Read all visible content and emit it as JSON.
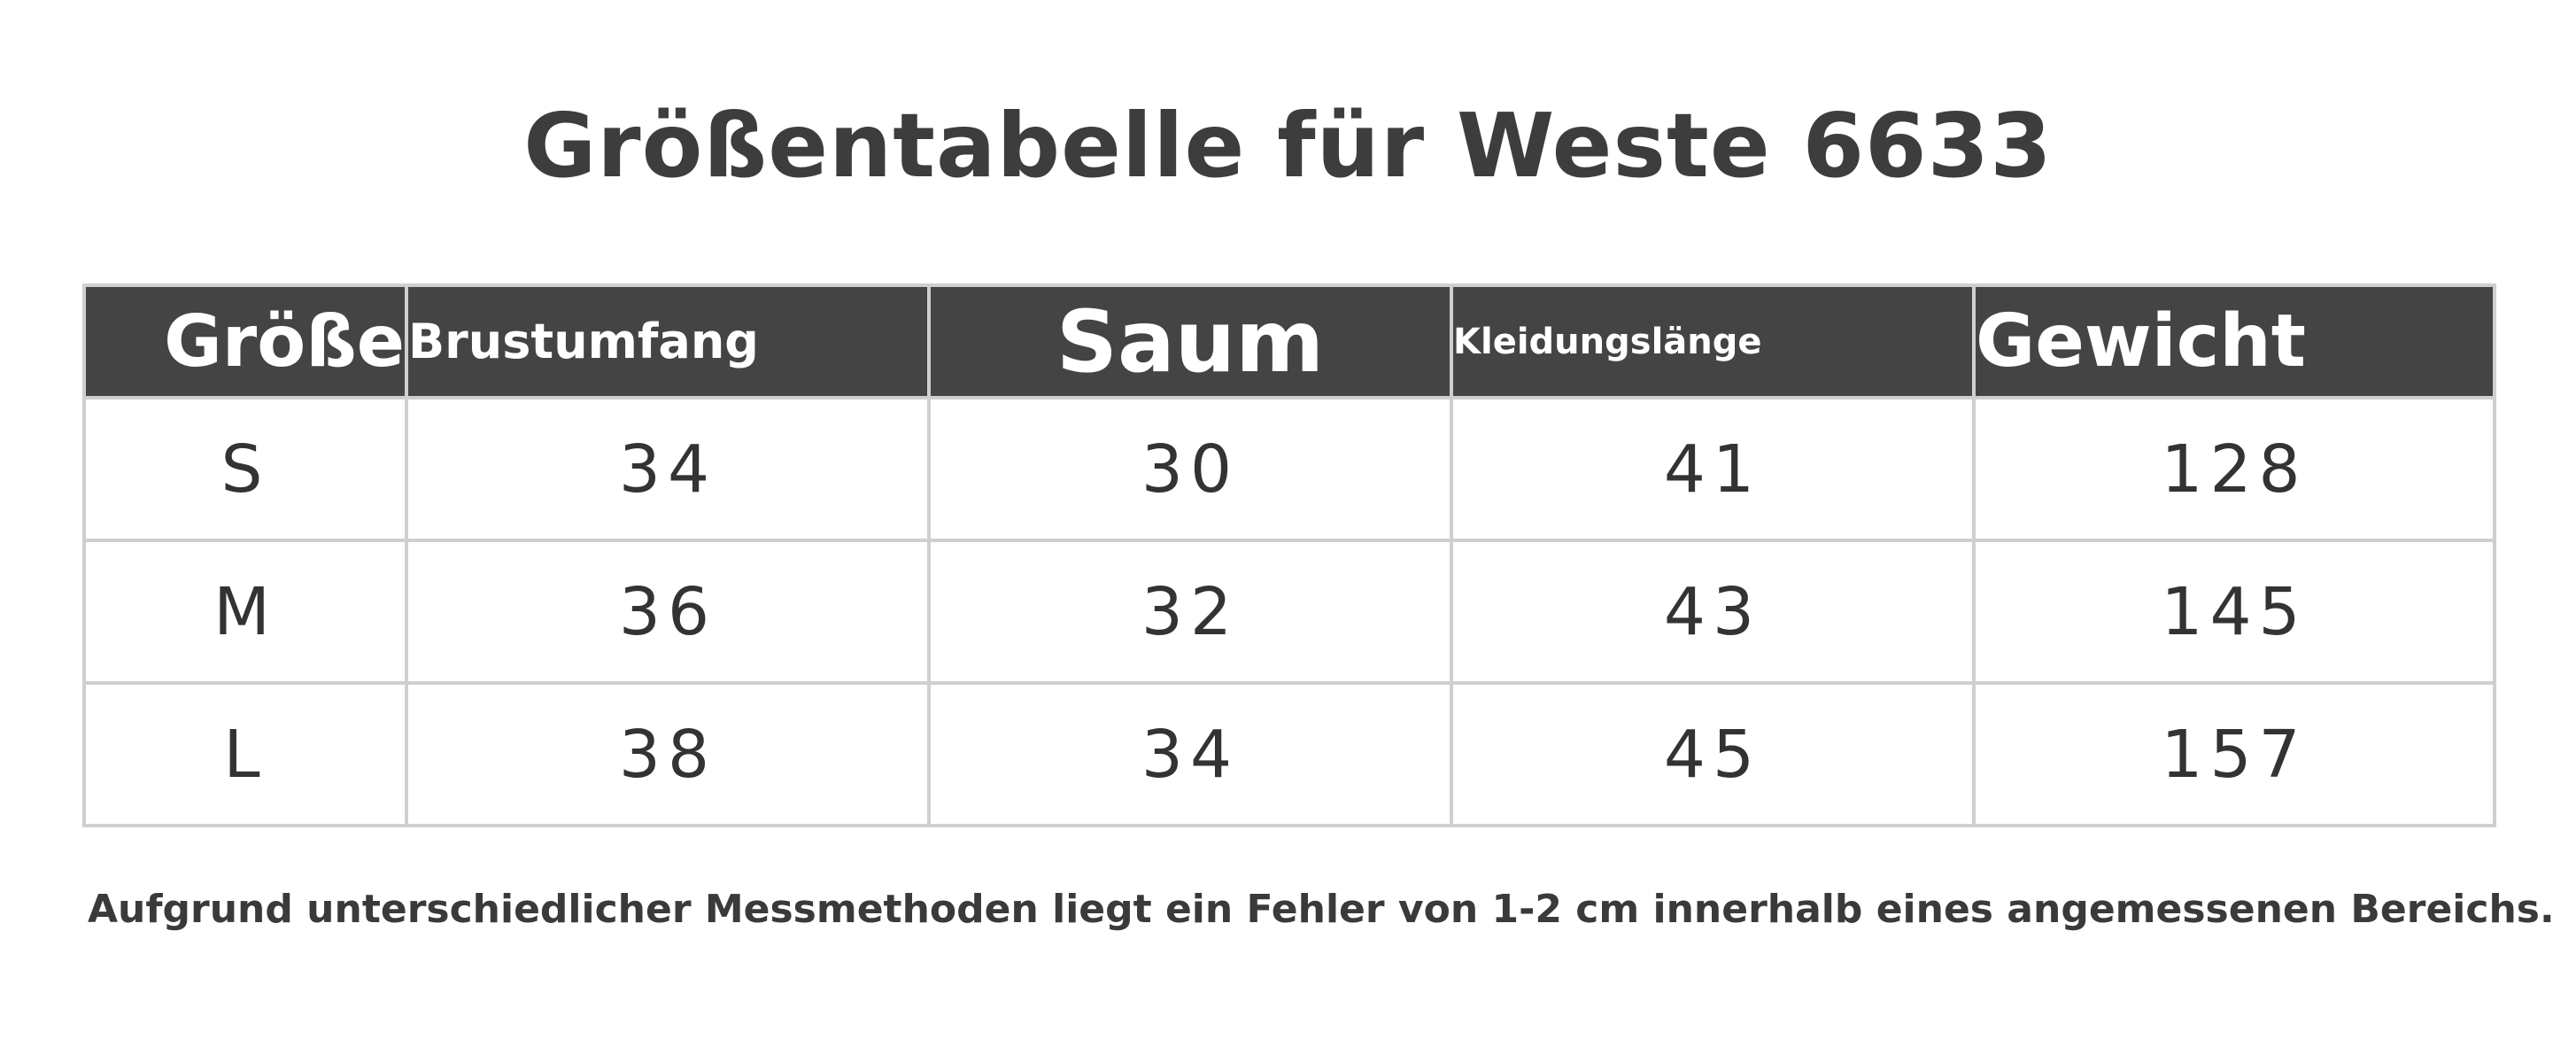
{
  "title": "Größentabelle für Weste 6633",
  "table": {
    "headers": {
      "size": "Größe",
      "chest": "Brustumfang",
      "hem": "Saum",
      "length": "Kleidungslänge",
      "weight": "Gewicht"
    },
    "rows": [
      {
        "size": "S",
        "chest": "34",
        "hem": "30",
        "length": "41",
        "weight": "128"
      },
      {
        "size": "M",
        "chest": "36",
        "hem": "32",
        "length": "43",
        "weight": "145"
      },
      {
        "size": "L",
        "chest": "38",
        "hem": "34",
        "length": "45",
        "weight": "157"
      }
    ]
  },
  "note": "Aufgrund unterschiedlicher Messmethoden liegt ein Fehler von 1-2 cm innerhalb eines angemessenen Bereichs."
}
